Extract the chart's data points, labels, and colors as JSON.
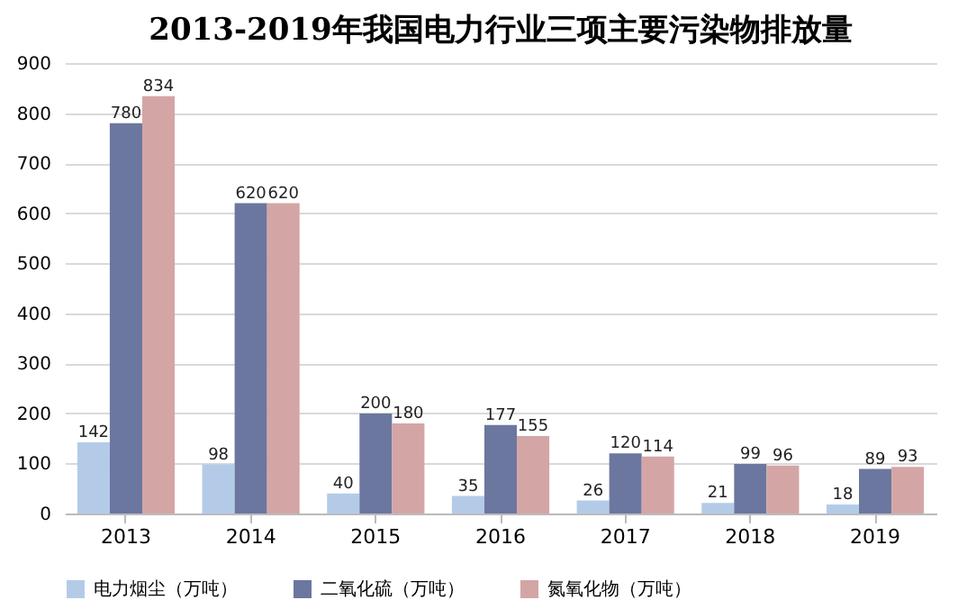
{
  "chart_data": {
    "type": "bar",
    "title": "2013-2019年我国电力行业三项主要污染物排放量",
    "categories": [
      "2013",
      "2014",
      "2015",
      "2016",
      "2017",
      "2018",
      "2019"
    ],
    "series": [
      {
        "name": "电力烟尘（万吨）",
        "color": "#b4cbe8",
        "values": [
          142,
          98,
          40,
          35,
          26,
          21,
          18
        ]
      },
      {
        "name": "二氧化硫（万吨）",
        "color": "#6b779f",
        "values": [
          780,
          620,
          200,
          177,
          120,
          99,
          89
        ]
      },
      {
        "name": "氮氧化物（万吨）",
        "color": "#d4a5a5",
        "values": [
          834,
          620,
          180,
          155,
          114,
          96,
          93
        ]
      }
    ],
    "ylim": [
      0,
      900
    ],
    "yticks": [
      0,
      100,
      200,
      300,
      400,
      500,
      600,
      700,
      800,
      900
    ],
    "grid": "y",
    "legend": "bottom",
    "data_labels": true
  }
}
